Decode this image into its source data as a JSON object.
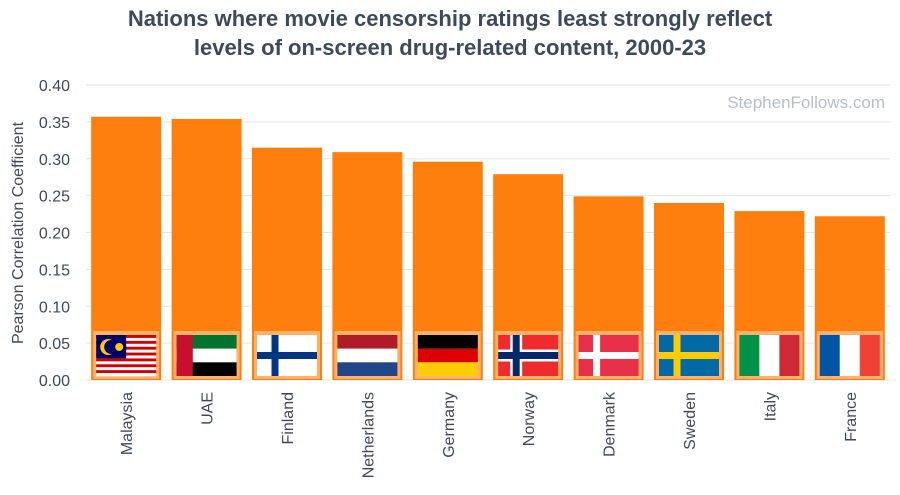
{
  "chart_data": {
    "type": "bar",
    "title_lines": [
      "Nations where movie censorship ratings least strongly reflect",
      "levels of on-screen drug-related content, 2000-23"
    ],
    "watermark": "StephenFollows.com",
    "xlabel": "",
    "ylabel": "Pearson Correlation Coefficient",
    "ylim": [
      0,
      0.4
    ],
    "yticks": [
      "0.00",
      "0.05",
      "0.10",
      "0.15",
      "0.20",
      "0.25",
      "0.30",
      "0.35",
      "0.40"
    ],
    "grid": true,
    "categories": [
      "Malaysia",
      "UAE",
      "Finland",
      "Netherlands",
      "Germany",
      "Norway",
      "Denmark",
      "Sweden",
      "Italy",
      "France"
    ],
    "values": [
      0.357,
      0.354,
      0.315,
      0.309,
      0.296,
      0.279,
      0.249,
      0.24,
      0.229,
      0.222
    ],
    "bar_color": "#ff7f0e",
    "flag_icons": [
      "malaysia-flag-icon",
      "uae-flag-icon",
      "finland-flag-icon",
      "netherlands-flag-icon",
      "germany-flag-icon",
      "norway-flag-icon",
      "denmark-flag-icon",
      "sweden-flag-icon",
      "italy-flag-icon",
      "france-flag-icon"
    ]
  }
}
